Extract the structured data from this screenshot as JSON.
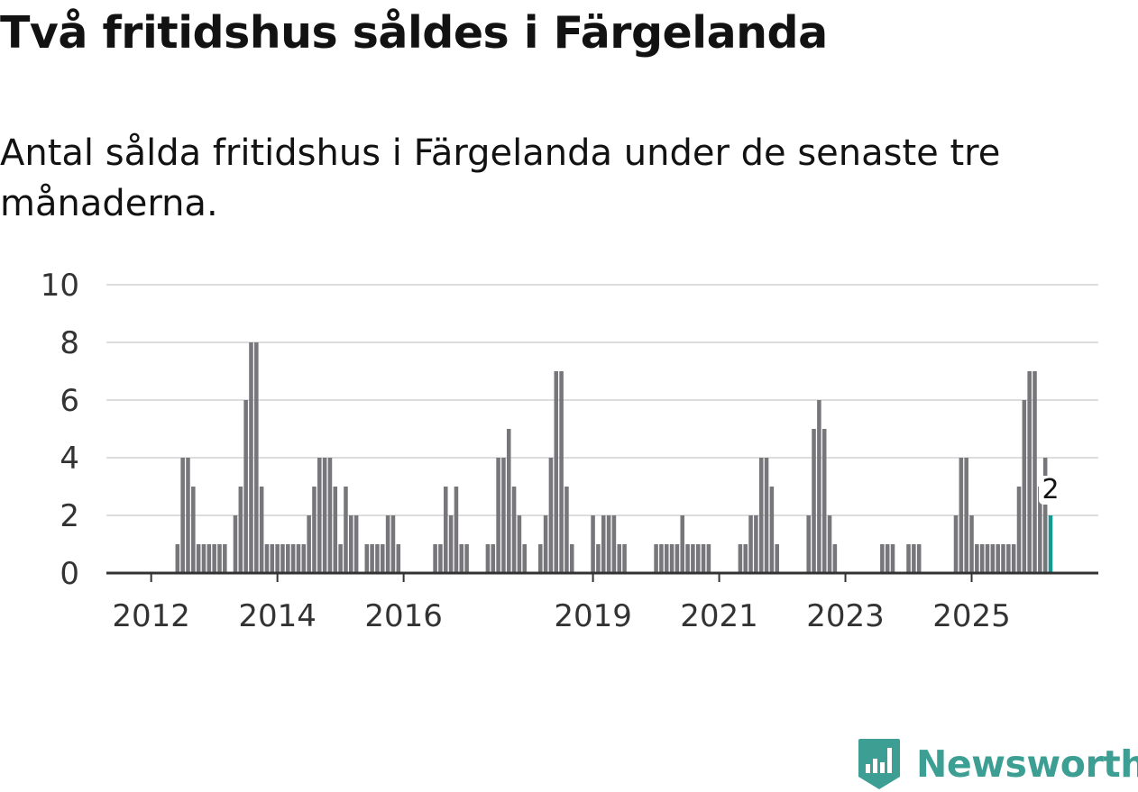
{
  "title": "Två fritidshus såldes i Färgelanda",
  "subtitle": "Antal sålda fritidshus i Färgelanda under de senaste tre månaderna.",
  "brand": {
    "name": "Newsworthy",
    "color": "#3d9e94"
  },
  "colors": {
    "bar": "#77777b",
    "highlight": "#159a92",
    "grid": "#dddddd",
    "axis": "#333333",
    "tick": "#333333"
  },
  "chart_data": {
    "type": "bar",
    "title": "Två fritidshus såldes i Färgelanda",
    "xlabel": "",
    "ylabel": "",
    "ylim": [
      0,
      10
    ],
    "yticks": [
      "0",
      "2",
      "4",
      "6",
      "8",
      "10"
    ],
    "grid": true,
    "legend": "none",
    "x_start": "2012-01",
    "x_end": "2025-11",
    "xticks": [
      {
        "label": "2012",
        "index": 8
      },
      {
        "label": "2014",
        "index": 32
      },
      {
        "label": "2016",
        "index": 56
      },
      {
        "label": "2019",
        "index": 92
      },
      {
        "label": "2021",
        "index": 116
      },
      {
        "label": "2023",
        "index": 140
      },
      {
        "label": "2025",
        "index": 164
      }
    ],
    "values": [
      0,
      0,
      0,
      0,
      0,
      0,
      0,
      0,
      0,
      0,
      0,
      0,
      0,
      1,
      4,
      4,
      3,
      1,
      1,
      1,
      1,
      1,
      1,
      0,
      2,
      3,
      6,
      8,
      8,
      3,
      1,
      1,
      1,
      1,
      1,
      1,
      1,
      1,
      2,
      3,
      4,
      4,
      4,
      3,
      1,
      3,
      2,
      2,
      0,
      1,
      1,
      1,
      1,
      2,
      2,
      1,
      0,
      0,
      0,
      0,
      0,
      0,
      1,
      1,
      3,
      2,
      3,
      1,
      1,
      0,
      0,
      0,
      1,
      1,
      4,
      4,
      5,
      3,
      2,
      1,
      0,
      0,
      1,
      2,
      4,
      7,
      7,
      3,
      1,
      0,
      0,
      0,
      2,
      1,
      2,
      2,
      2,
      1,
      1,
      0,
      0,
      0,
      0,
      0,
      1,
      1,
      1,
      1,
      1,
      2,
      1,
      1,
      1,
      1,
      1,
      0,
      0,
      0,
      0,
      0,
      1,
      1,
      2,
      2,
      4,
      4,
      3,
      1,
      0,
      0,
      0,
      0,
      0,
      2,
      5,
      6,
      5,
      2,
      1,
      0,
      0,
      0,
      0,
      0,
      0,
      0,
      0,
      1,
      1,
      1,
      0,
      0,
      1,
      1,
      1,
      0,
      0,
      0,
      0,
      0,
      0,
      2,
      4,
      4,
      2,
      1,
      1,
      1,
      1,
      1,
      1,
      1,
      1,
      3,
      6,
      7,
      7,
      3,
      4,
      2
    ],
    "highlight_last": true,
    "last_label": "2"
  }
}
